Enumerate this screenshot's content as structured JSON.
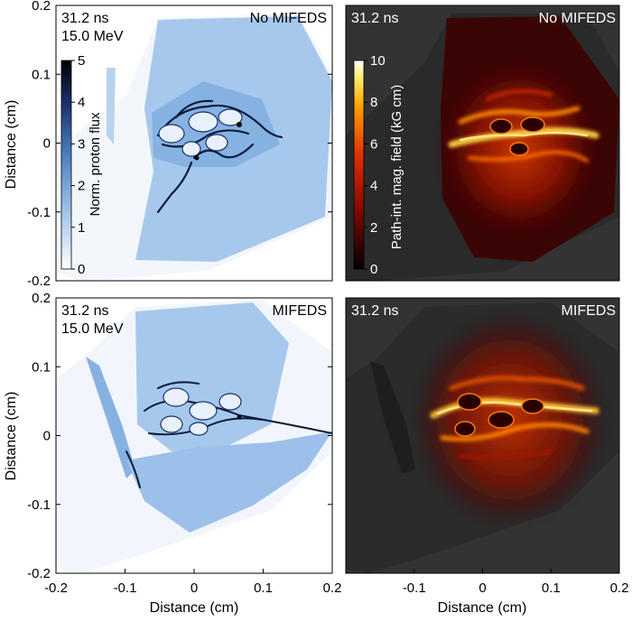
{
  "chart_data": [
    {
      "type": "heatmap",
      "panel": "top-left",
      "time_label": "31.2 ns",
      "energy_label": "15.0 MeV",
      "case_label": "No MIFEDS",
      "xlim": [
        -0.2,
        0.2
      ],
      "ylim": [
        -0.2,
        0.2
      ],
      "xticks": [],
      "yticks": [
        "0.2",
        "0.1",
        "0",
        "-0.1",
        "-0.2"
      ],
      "ylabel": "Distance (cm)",
      "colorbar": {
        "label": "Norm. proton flux",
        "range": [
          0,
          5
        ],
        "ticks": [
          "0",
          "1",
          "2",
          "3",
          "4",
          "5"
        ],
        "colormap": "white-blue-black"
      }
    },
    {
      "type": "heatmap",
      "panel": "top-right",
      "time_label": "31.2 ns",
      "case_label": "No MIFEDS",
      "xlim": [
        -0.2,
        0.2
      ],
      "ylim": [
        -0.2,
        0.2
      ],
      "xticks": [],
      "yticks": [],
      "colorbar": {
        "label": "Path-int. mag. field (kG cm)",
        "range": [
          0,
          10
        ],
        "ticks": [
          "0",
          "2",
          "4",
          "6",
          "8",
          "10"
        ],
        "colormap": "black-red-yellow-white"
      }
    },
    {
      "type": "heatmap",
      "panel": "bottom-left",
      "time_label": "31.2 ns",
      "energy_label": "15.0 MeV",
      "case_label": "MIFEDS",
      "xlim": [
        -0.2,
        0.2
      ],
      "ylim": [
        -0.2,
        0.2
      ],
      "xticks": [
        "-0.2",
        "-0.1",
        "0",
        "0.1",
        "0.2"
      ],
      "yticks": [
        "0.2",
        "0.1",
        "0",
        "-0.1",
        "-0.2"
      ],
      "xlabel": "Distance (cm)",
      "ylabel": "Distance (cm)"
    },
    {
      "type": "heatmap",
      "panel": "bottom-right",
      "time_label": "31.2 ns",
      "case_label": "MIFEDS",
      "xlim": [
        -0.2,
        0.2
      ],
      "ylim": [
        -0.2,
        0.2
      ],
      "xticks": [
        "-0.1",
        "0",
        "0.1",
        "0.2"
      ],
      "yticks": [],
      "xlabel": "Distance (cm)"
    }
  ],
  "colors": {
    "flux_background": "#ffffff",
    "flux_light": "#cfe0f2",
    "flux_mid": "#8db8e6",
    "flux_dark": "#0a1a3a",
    "field_background": "#333333",
    "field_dark_red": "#3a0505",
    "field_red": "#b01a00",
    "field_orange": "#ff7a00",
    "field_yellow": "#ffee80"
  }
}
